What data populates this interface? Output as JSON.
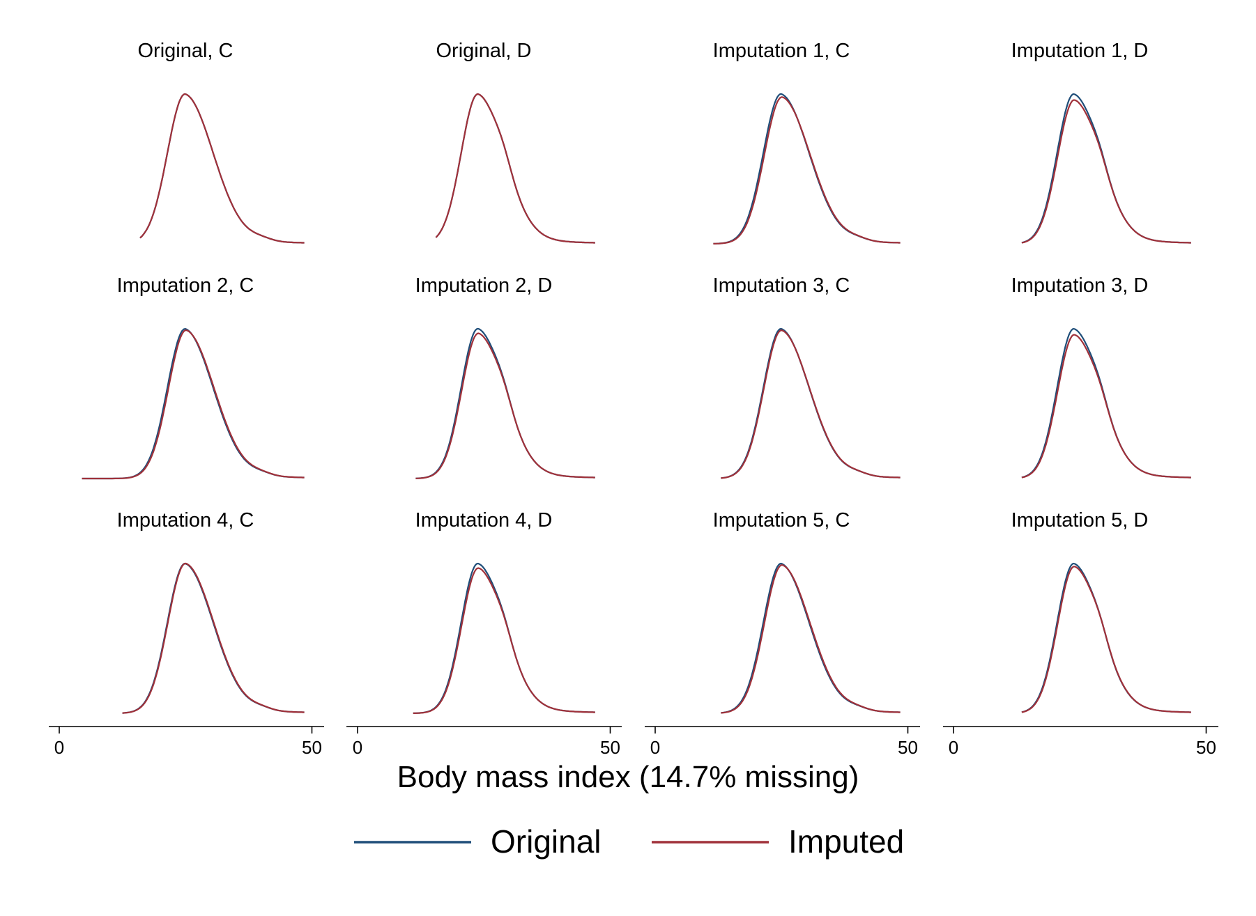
{
  "colors": {
    "original": "#1f4e79",
    "imputed": "#a0313a",
    "axis": "#000000"
  },
  "chart_data": {
    "type": "line",
    "xlabel": "Body mass index (14.7% missing)",
    "x_ticks": [
      "0",
      "50"
    ],
    "xlim": [
      0,
      50
    ],
    "layout": "grid 3 rows x 4 columns; shared x axis per column on bottom row; legend bottom-center",
    "legend": [
      {
        "name": "Original",
        "color": "#1f4e79"
      },
      {
        "name": "Imputed",
        "color": "#a0313a"
      }
    ],
    "panels": [
      {
        "title": "Original, C",
        "group": "C",
        "x_range": [
          16,
          48.5
        ],
        "original": {
          "mode": 24.9,
          "peak": 1.0
        },
        "imputed": {
          "mode": 24.9,
          "peak": 1.0
        }
      },
      {
        "title": "Original, D",
        "group": "D",
        "x_range": [
          15.5,
          47
        ],
        "original": {
          "mode": 23.8,
          "peak": 1.0
        },
        "imputed": {
          "mode": 23.8,
          "peak": 1.0
        }
      },
      {
        "title": "Imputation 1, C",
        "group": "C",
        "x_range": [
          11.5,
          48.5
        ],
        "original": {
          "mode": 24.9,
          "peak": 1.0
        },
        "imputed": {
          "mode": 25.1,
          "peak": 0.98
        }
      },
      {
        "title": "Imputation 1, D",
        "group": "D",
        "x_range": [
          13.5,
          47
        ],
        "original": {
          "mode": 23.8,
          "peak": 1.0
        },
        "imputed": {
          "mode": 23.9,
          "peak": 0.96
        }
      },
      {
        "title": "Imputation 2, C",
        "group": "C",
        "x_range": [
          4.5,
          48.5
        ],
        "original": {
          "mode": 24.9,
          "peak": 1.0
        },
        "imputed": {
          "mode": 25.1,
          "peak": 0.99
        }
      },
      {
        "title": "Imputation 2, D",
        "group": "D",
        "x_range": [
          11.5,
          47
        ],
        "original": {
          "mode": 23.8,
          "peak": 1.0
        },
        "imputed": {
          "mode": 23.9,
          "peak": 0.97
        }
      },
      {
        "title": "Imputation 3, C",
        "group": "C",
        "x_range": [
          13,
          48.5
        ],
        "original": {
          "mode": 24.9,
          "peak": 1.0
        },
        "imputed": {
          "mode": 25.0,
          "peak": 0.99
        }
      },
      {
        "title": "Imputation 3, D",
        "group": "D",
        "x_range": [
          13.5,
          47
        ],
        "original": {
          "mode": 23.8,
          "peak": 1.0
        },
        "imputed": {
          "mode": 23.9,
          "peak": 0.96
        }
      },
      {
        "title": "Imputation 4, C",
        "group": "C",
        "x_range": [
          12.5,
          48.5
        ],
        "original": {
          "mode": 24.9,
          "peak": 1.0
        },
        "imputed": {
          "mode": 25.0,
          "peak": 1.0
        }
      },
      {
        "title": "Imputation 4, D",
        "group": "D",
        "x_range": [
          11,
          47
        ],
        "original": {
          "mode": 23.8,
          "peak": 1.0
        },
        "imputed": {
          "mode": 23.9,
          "peak": 0.97
        }
      },
      {
        "title": "Imputation 5, C",
        "group": "C",
        "x_range": [
          13,
          48.5
        ],
        "original": {
          "mode": 24.9,
          "peak": 1.0
        },
        "imputed": {
          "mode": 25.1,
          "peak": 0.99
        }
      },
      {
        "title": "Imputation 5, D",
        "group": "D",
        "x_range": [
          13.5,
          47
        ],
        "original": {
          "mode": 23.8,
          "peak": 1.0
        },
        "imputed": {
          "mode": 23.9,
          "peak": 0.98
        }
      }
    ]
  }
}
